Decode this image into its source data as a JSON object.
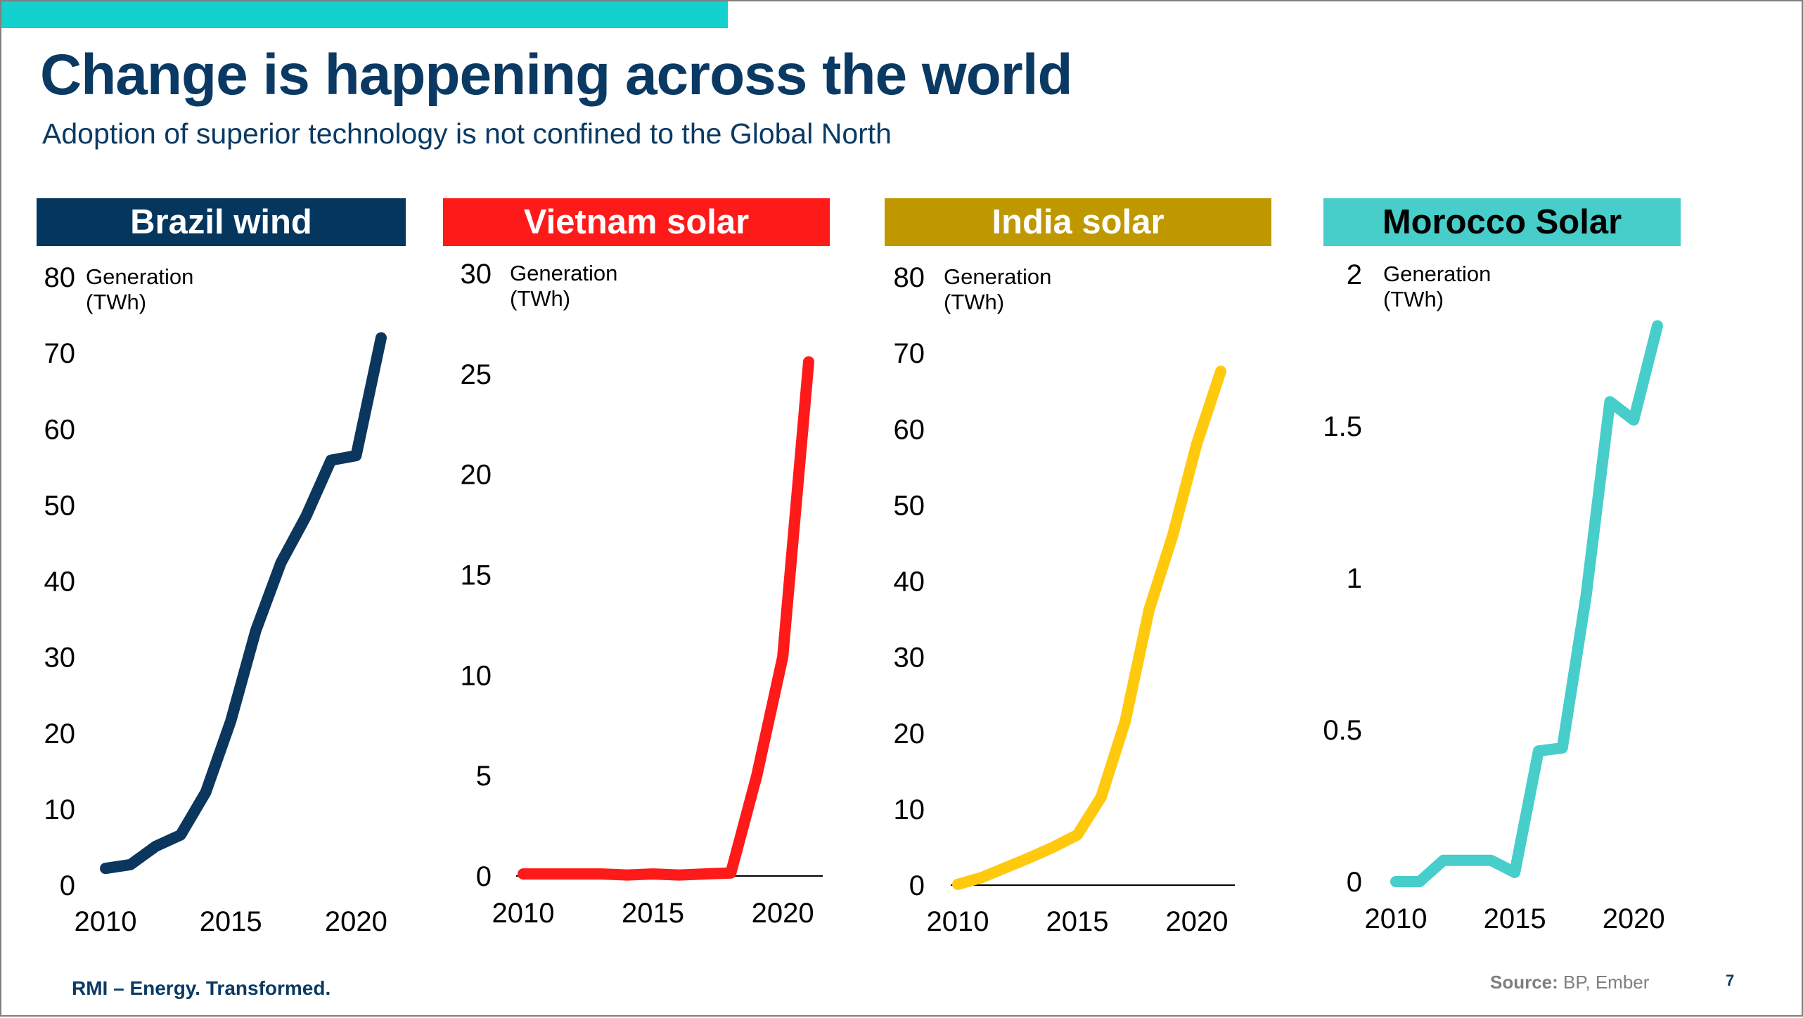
{
  "title": "Change is happening across the world",
  "subtitle": "Adoption of superior technology is not confined to the Global North",
  "footer": {
    "brand": "RMI – Energy. Transformed.",
    "source_label": "Source:",
    "source_text": "BP, Ember",
    "page_number": "7"
  },
  "colors": {
    "accent": "#12d1cf",
    "title": "#0a3a63"
  },
  "chart_data": [
    {
      "type": "line",
      "title": "Brazil wind",
      "header_bg": "#05365e",
      "header_fg": "#ffffff",
      "line_color": "#0b365d",
      "ylabel": [
        "Generation",
        "(TWh)"
      ],
      "ylim": [
        0,
        80
      ],
      "yticks": [
        0,
        10,
        20,
        30,
        40,
        50,
        60,
        70,
        80
      ],
      "ytick_labels": [
        "0",
        "10",
        "20",
        "30",
        "40",
        "50",
        "60",
        "70",
        "80"
      ],
      "xlim": [
        2010,
        2021
      ],
      "xticks": [
        2010,
        2015,
        2020
      ],
      "xtick_labels": [
        "2010",
        "2015",
        "2020"
      ],
      "series": [
        {
          "x": [
            2010,
            2011,
            2012,
            2013,
            2014,
            2015,
            2016,
            2017,
            2018,
            2019,
            2020,
            2021
          ],
          "values": [
            2.2,
            2.7,
            5.1,
            6.6,
            12.2,
            21.6,
            33.5,
            42.4,
            48.5,
            55.9,
            56.5,
            72.0
          ]
        }
      ]
    },
    {
      "type": "line",
      "title": "Vietnam solar",
      "header_bg": "#ff1a1a",
      "header_fg": "#ffffff",
      "line_color": "#ff1a1a",
      "ylabel": [
        "Generation",
        "(TWh)"
      ],
      "ylim": [
        0,
        30
      ],
      "yticks": [
        0,
        5,
        10,
        15,
        20,
        25,
        30
      ],
      "ytick_labels": [
        "0",
        "5",
        "10",
        "15",
        "20",
        "25",
        "30"
      ],
      "xlim": [
        2010,
        2021
      ],
      "xticks": [
        2010,
        2015,
        2020
      ],
      "xtick_labels": [
        "2010",
        "2015",
        "2020"
      ],
      "series": [
        {
          "x": [
            2010,
            2011,
            2012,
            2013,
            2014,
            2015,
            2016,
            2017,
            2018,
            2019,
            2020,
            2021
          ],
          "values": [
            0.1,
            0.1,
            0.1,
            0.1,
            0.05,
            0.1,
            0.05,
            0.1,
            0.15,
            5.0,
            10.9,
            25.6
          ]
        }
      ]
    },
    {
      "type": "line",
      "title": "India solar",
      "header_bg": "#bf9800",
      "header_fg": "#ffffff",
      "line_color": "#ffc90e",
      "ylabel": [
        "Generation",
        "(TWh)"
      ],
      "ylim": [
        0,
        80
      ],
      "yticks": [
        0,
        10,
        20,
        30,
        40,
        50,
        60,
        70,
        80
      ],
      "ytick_labels": [
        "0",
        "10",
        "20",
        "30",
        "40",
        "50",
        "60",
        "70",
        "80"
      ],
      "xlim": [
        2010,
        2021
      ],
      "xticks": [
        2010,
        2015,
        2020
      ],
      "xtick_labels": [
        "2010",
        "2015",
        "2020"
      ],
      "series": [
        {
          "x": [
            2010,
            2011,
            2012,
            2013,
            2014,
            2015,
            2016,
            2017,
            2018,
            2019,
            2020,
            2021
          ],
          "values": [
            0.1,
            1.0,
            2.3,
            3.6,
            5.0,
            6.6,
            11.6,
            21.5,
            36.2,
            46.1,
            58.1,
            67.6
          ]
        }
      ]
    },
    {
      "type": "line",
      "title": "Morocco Solar",
      "header_bg": "#47ceca",
      "header_fg": "#000000",
      "line_color": "#47ceca",
      "ylabel": [
        "Generation",
        "(TWh)"
      ],
      "ylim": [
        0,
        2
      ],
      "yticks": [
        0,
        0.5,
        1,
        1.5,
        2
      ],
      "ytick_labels": [
        "0",
        "0.5",
        "1",
        "1.5",
        "2"
      ],
      "xlim": [
        2010,
        2021
      ],
      "xticks": [
        2010,
        2015,
        2020
      ],
      "xtick_labels": [
        "2010",
        "2015",
        "2020"
      ],
      "series": [
        {
          "x": [
            2010,
            2011,
            2012,
            2013,
            2014,
            2015,
            2016,
            2017,
            2018,
            2019,
            2020,
            2021
          ],
          "values": [
            0.0,
            0.0,
            0.07,
            0.07,
            0.07,
            0.03,
            0.43,
            0.44,
            0.94,
            1.58,
            1.52,
            1.83
          ]
        }
      ]
    }
  ]
}
